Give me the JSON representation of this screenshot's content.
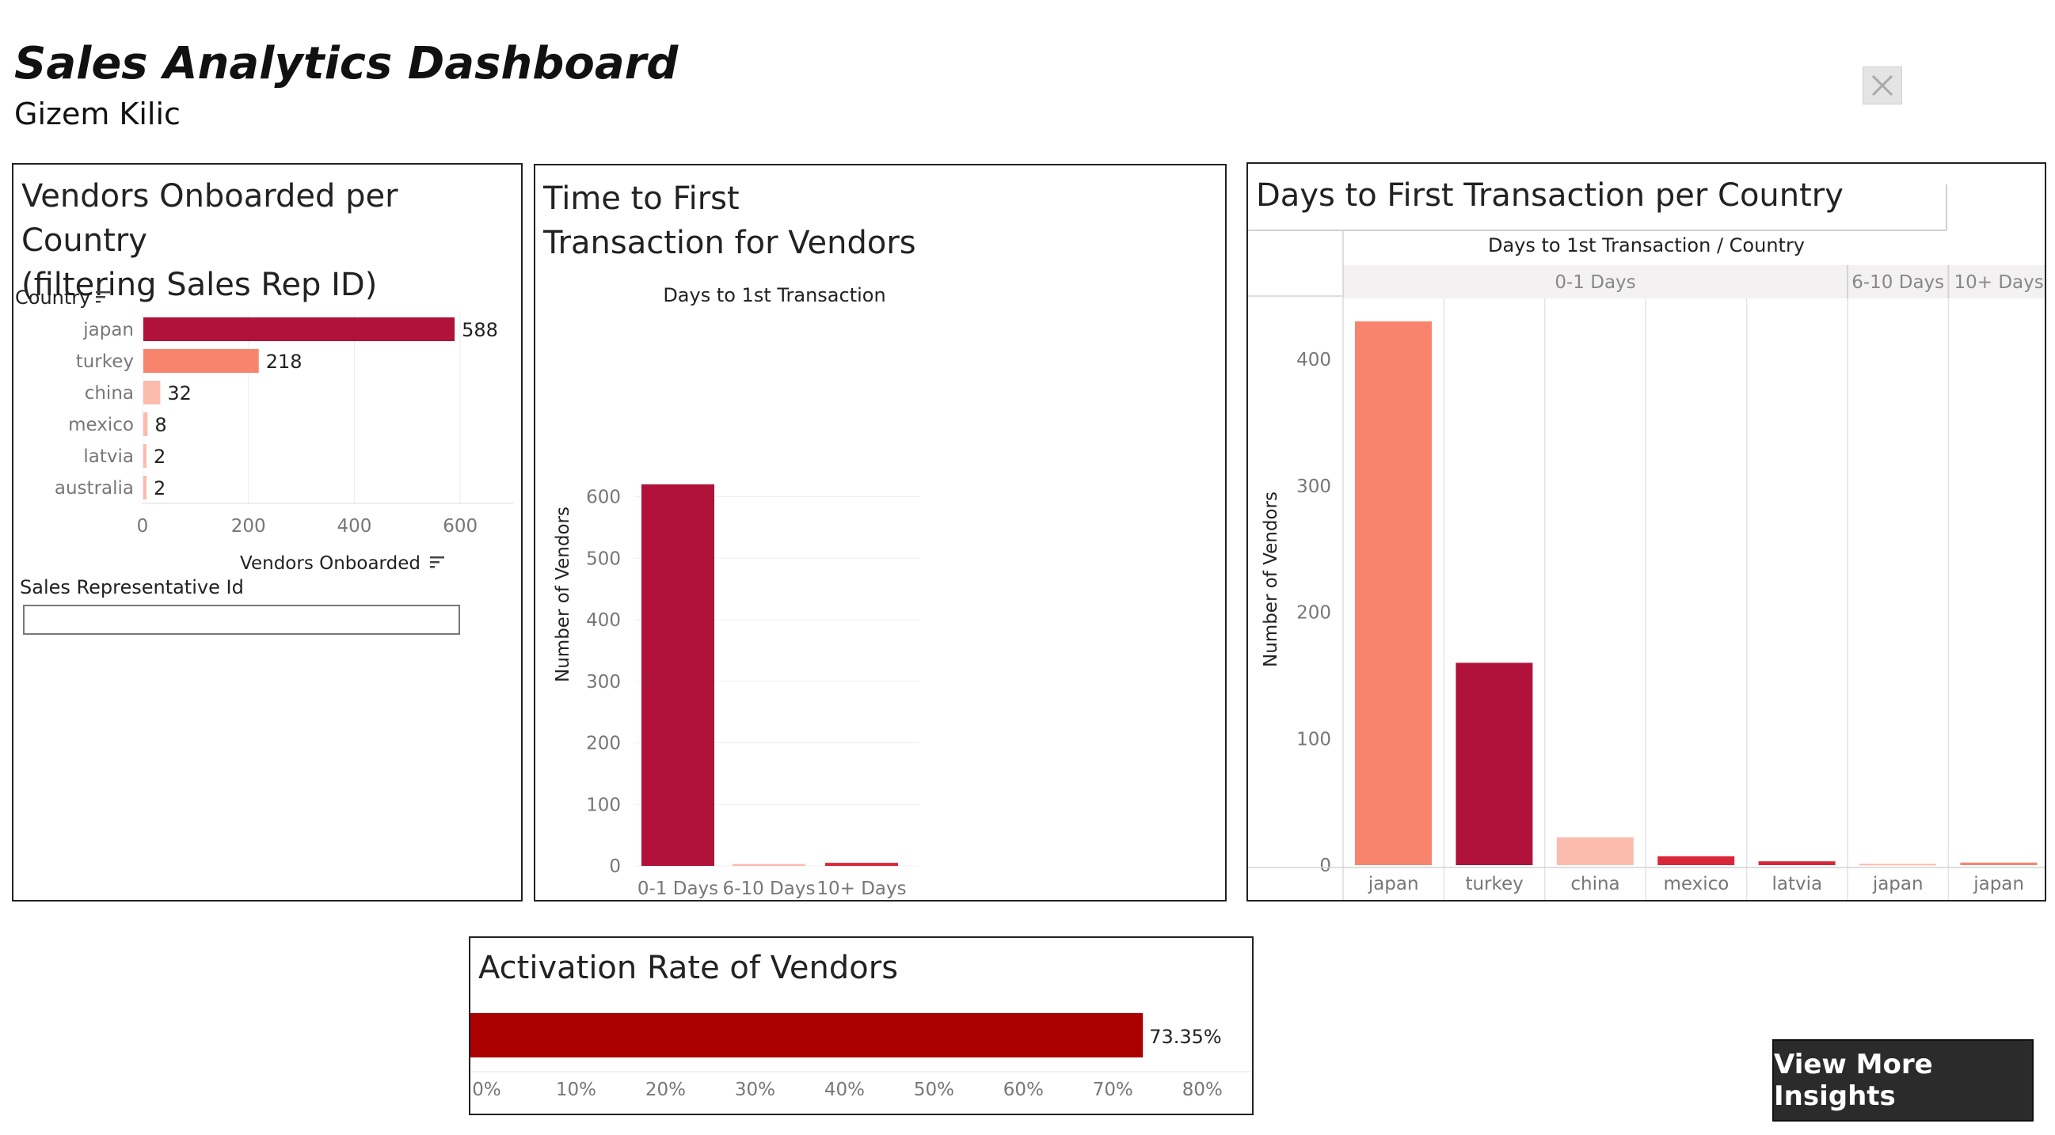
{
  "header": {
    "title": "Sales Analytics Dashboard",
    "subtitle": "Gizem Kilic"
  },
  "panels": {
    "vendors": {
      "title_line1": "Vendors Onboarded per Country",
      "title_line2": "(filtering Sales Rep ID)"
    },
    "time": {
      "title_line1": "Time to First",
      "title_line2": "Transaction for Vendors"
    },
    "days": {
      "title": "Days to First Transaction per Country"
    },
    "activation": {
      "title": "Activation Rate of Vendors"
    }
  },
  "filter": {
    "label": "Sales Representative Id",
    "value": ""
  },
  "buttons": {
    "insights": "View More Insights"
  },
  "colors": {
    "dark": "#b0123a",
    "salmon": "#f8846e",
    "light": "#fbbcae",
    "red": "#d9273a",
    "activation": "#ab0000"
  },
  "chart_data": [
    {
      "id": "vendors",
      "type": "bar",
      "orientation": "horizontal",
      "ylabel": "Country",
      "xlabel": "Vendors Onboarded",
      "categories": [
        "japan",
        "turkey",
        "china",
        "mexico",
        "latvia",
        "australia"
      ],
      "values": [
        588,
        218,
        32,
        8,
        2,
        2
      ],
      "xlim": [
        0,
        700
      ],
      "xticks": [
        0,
        200,
        400,
        600
      ],
      "grid": true
    },
    {
      "id": "time",
      "type": "bar",
      "title": "Days to 1st Transaction",
      "ylabel": "Number of Vendors",
      "categories": [
        "0-1 Days",
        "6-10 Days",
        "10+ Days"
      ],
      "values": [
        620,
        3,
        5
      ],
      "ylim": [
        0,
        650
      ],
      "yticks": [
        0,
        100,
        200,
        300,
        400,
        500,
        600
      ],
      "grid": true
    },
    {
      "id": "days",
      "type": "bar",
      "title": "Days to 1st Transaction / Country",
      "ylabel": "Number of Vendors",
      "groups": [
        {
          "name": "0-1 Days",
          "categories": [
            "japan",
            "turkey",
            "china",
            "mexico",
            "latvia"
          ],
          "values": [
            430,
            160,
            22,
            7,
            3
          ]
        },
        {
          "name": "6-10 Days",
          "categories": [
            "japan"
          ],
          "values": [
            1
          ]
        },
        {
          "name": "10+ Days",
          "categories": [
            "japan"
          ],
          "values": [
            2
          ]
        }
      ],
      "ylim": [
        0,
        450
      ],
      "yticks": [
        0,
        100,
        200,
        300,
        400
      ],
      "grid": false
    },
    {
      "id": "activation",
      "type": "bar",
      "orientation": "horizontal",
      "values": [
        73.35
      ],
      "value_label": "73.35%",
      "xlim": [
        0,
        85
      ],
      "xticks": [
        "0%",
        "10%",
        "20%",
        "30%",
        "40%",
        "50%",
        "60%",
        "70%",
        "80%"
      ],
      "xtick_values": [
        0,
        10,
        20,
        30,
        40,
        50,
        60,
        70,
        80
      ]
    }
  ]
}
